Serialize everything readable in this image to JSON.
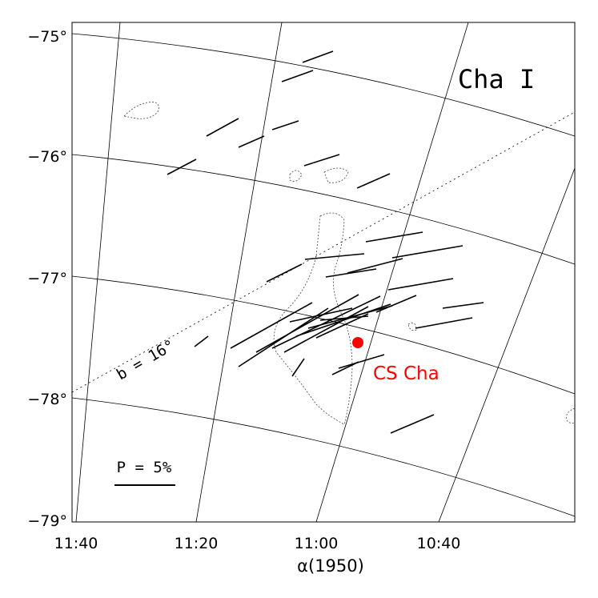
{
  "figure": {
    "title": "Cha I",
    "y_labels": [
      "−75°",
      "−76°",
      "−77°",
      "−78°",
      "−79°"
    ],
    "x_labels": [
      "11:40",
      "11:20",
      "11:00",
      "10:40"
    ],
    "x_axis_label": "α(1950)",
    "galactic_label": "b = 16°",
    "scale_label": "P = 5%",
    "star_label": "CS Cha"
  }
}
